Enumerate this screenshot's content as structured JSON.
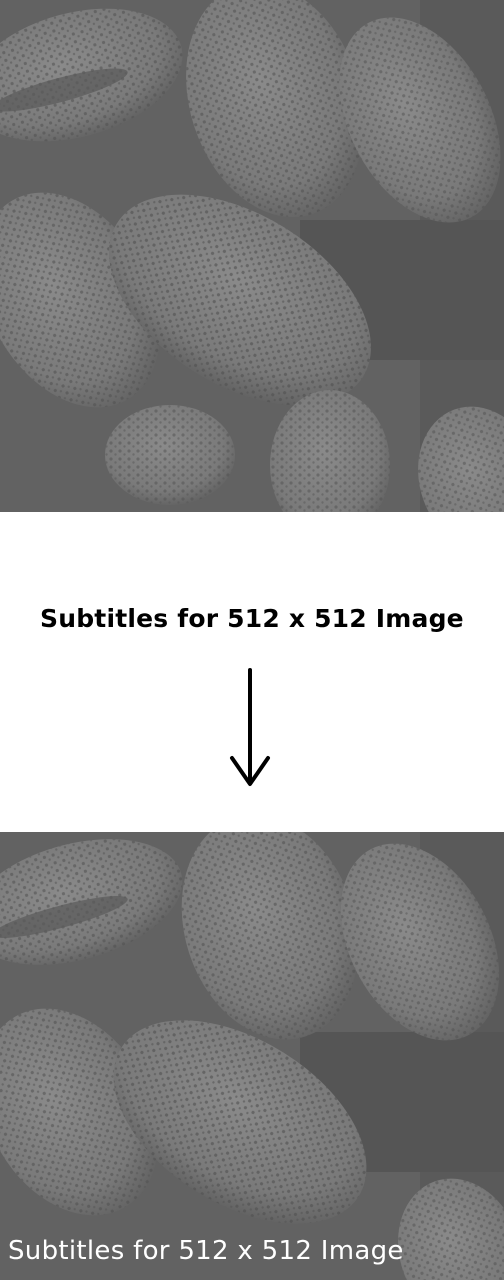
{
  "heading": "Subtitles for 512 x 512 Image",
  "subtitle": "Subtitles for 512 x 512 Image",
  "colors": {
    "page_background": "#ffffff",
    "image_tone": "#6e6e6e",
    "heading_text": "#000000",
    "subtitle_text": "#ffffff"
  },
  "icons": {
    "arrow": "down-arrow-icon"
  }
}
